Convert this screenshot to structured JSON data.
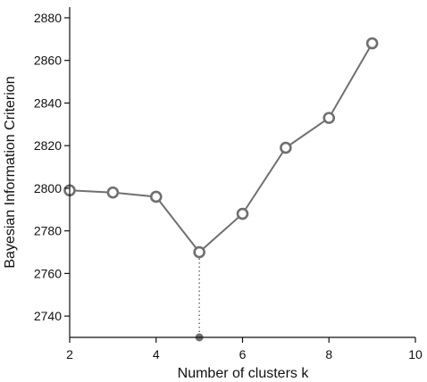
{
  "chart_data": {
    "type": "line",
    "xlabel": "Number of clusters k",
    "ylabel": "Bayesian Information Criterion",
    "xlim": [
      2,
      10
    ],
    "ylim": [
      2730,
      2885
    ],
    "xticks": [
      2,
      4,
      6,
      8,
      10
    ],
    "yticks": [
      2740,
      2760,
      2780,
      2800,
      2820,
      2840,
      2860,
      2880
    ],
    "grid": false,
    "series": [
      {
        "x": [
          2,
          3,
          4,
          5,
          6,
          7,
          8,
          9
        ],
        "values": [
          2799,
          2798,
          2796,
          2770,
          2788,
          2819,
          2833,
          2868
        ]
      }
    ],
    "annotation": {
      "type": "vertical-dotted-line-to-axis",
      "x": 5,
      "y": 2770
    },
    "colors": {
      "line": "#707070",
      "marker_stroke": "#707070",
      "marker_fill": "#ffffff",
      "axis": "#111111",
      "annotation": "#707070"
    }
  }
}
